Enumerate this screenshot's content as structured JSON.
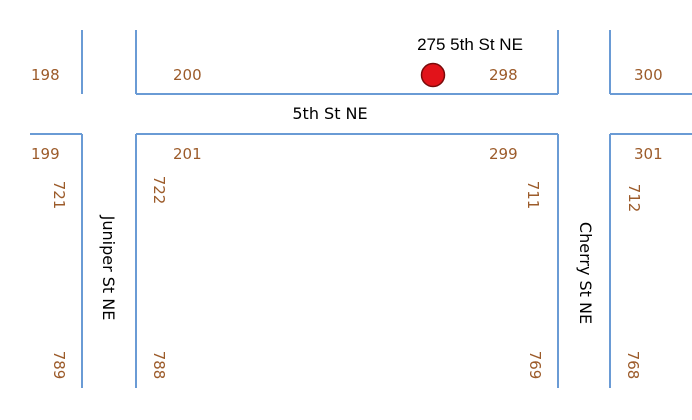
{
  "colors": {
    "street_edge": "#6a9bd5",
    "house_number": "#9c5b2a",
    "marker_fill": "#e2131a",
    "marker_stroke": "#7a0a0a",
    "street_label": "#000000"
  },
  "streets": {
    "fifth": "5th St NE",
    "juniper": "Juniper St NE",
    "cherry": "Cherry St NE"
  },
  "house_numbers": {
    "n198": "198",
    "n200": "200",
    "n298": "298",
    "n300": "300",
    "n199": "199",
    "n201": "201",
    "n299": "299",
    "n301": "301",
    "n721": "721",
    "n722": "722",
    "n711": "711",
    "n712": "712",
    "n789": "789",
    "n788": "788",
    "n769": "769",
    "n768": "768"
  },
  "marker": {
    "label": "275 5th St NE",
    "icon": "location-dot-icon"
  }
}
